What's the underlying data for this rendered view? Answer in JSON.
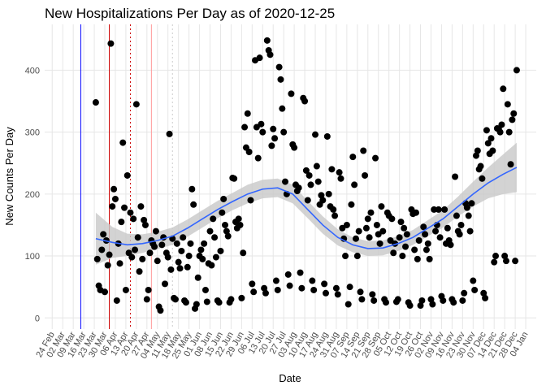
{
  "chart_data": {
    "type": "scatter",
    "title": "New Hospitalizations Per Day as of 2020-12-25",
    "x_label": "Date",
    "y_label": "New Counts Per Day",
    "color": "#000000",
    "grid": true,
    "xlim": [
      -5,
      322
    ],
    "ylim": [
      -18,
      474
    ],
    "yticks": [
      0,
      100,
      200,
      300,
      400
    ],
    "xticks": [
      {
        "value": 0,
        "label": "24 Feb"
      },
      {
        "value": 7,
        "label": "02 Mar"
      },
      {
        "value": 14,
        "label": "09 Mar"
      },
      {
        "value": 21,
        "label": "16 Mar"
      },
      {
        "value": 28,
        "label": "23 Mar"
      },
      {
        "value": 35,
        "label": "30 Mar"
      },
      {
        "value": 42,
        "label": "06 Apr"
      },
      {
        "value": 49,
        "label": "13 Apr"
      },
      {
        "value": 56,
        "label": "20 Apr"
      },
      {
        "value": 63,
        "label": "27 Apr"
      },
      {
        "value": 70,
        "label": "04 May"
      },
      {
        "value": 77,
        "label": "11 May"
      },
      {
        "value": 84,
        "label": "18 May"
      },
      {
        "value": 91,
        "label": "25 May"
      },
      {
        "value": 98,
        "label": "01 Jun"
      },
      {
        "value": 105,
        "label": "08 Jun"
      },
      {
        "value": 112,
        "label": "15 Jun"
      },
      {
        "value": 119,
        "label": "22 Jun"
      },
      {
        "value": 126,
        "label": "29 Jun"
      },
      {
        "value": 133,
        "label": "06 Jul"
      },
      {
        "value": 140,
        "label": "13 Jul"
      },
      {
        "value": 147,
        "label": "20 Jul"
      },
      {
        "value": 154,
        "label": "27 Jul"
      },
      {
        "value": 161,
        "label": "03 Aug"
      },
      {
        "value": 168,
        "label": "10 Aug"
      },
      {
        "value": 175,
        "label": "17 Aug"
      },
      {
        "value": 182,
        "label": "24 Aug"
      },
      {
        "value": 189,
        "label": "31 Aug"
      },
      {
        "value": 196,
        "label": "07 Sep"
      },
      {
        "value": 203,
        "label": "14 Sep"
      },
      {
        "value": 210,
        "label": "21 Sep"
      },
      {
        "value": 217,
        "label": "28 Sep"
      },
      {
        "value": 224,
        "label": "05 Oct"
      },
      {
        "value": 231,
        "label": "12 Oct"
      },
      {
        "value": 238,
        "label": "19 Oct"
      },
      {
        "value": 245,
        "label": "26 Oct"
      },
      {
        "value": 252,
        "label": "02 Nov"
      },
      {
        "value": 259,
        "label": "09 Nov"
      },
      {
        "value": 266,
        "label": "16 Nov"
      },
      {
        "value": 273,
        "label": "23 Nov"
      },
      {
        "value": 280,
        "label": "30 Nov"
      },
      {
        "value": 287,
        "label": "07 Dec"
      },
      {
        "value": 294,
        "label": "14 Dec"
      },
      {
        "value": 301,
        "label": "21 Dec"
      },
      {
        "value": 308,
        "label": "28 Dec"
      },
      {
        "value": 315,
        "label": "04 Jan"
      }
    ],
    "vlines": [
      {
        "x": 19,
        "color": "#0000ff",
        "dash": "solid"
      },
      {
        "x": 38,
        "color": "#cc0000",
        "dash": "solid"
      },
      {
        "x": 52,
        "color": "#cc0000",
        "dash": "dotted"
      },
      {
        "x": 66,
        "color": "#ff9999",
        "dash": "solid"
      },
      {
        "x": 80,
        "color": "#cccccc",
        "dash": "dotted"
      }
    ],
    "x": [
      29,
      30,
      31,
      32,
      33,
      34,
      35,
      36,
      37,
      38,
      39,
      40,
      41,
      42,
      43,
      44,
      45,
      46,
      47,
      48,
      49,
      50,
      51,
      52,
      53,
      54,
      55,
      56,
      57,
      58,
      59,
      60,
      61,
      62,
      63,
      64,
      65,
      66,
      67,
      68,
      69,
      70,
      71,
      72,
      73,
      74,
      75,
      76,
      77,
      78,
      79,
      80,
      81,
      82,
      83,
      84,
      85,
      86,
      87,
      88,
      89,
      90,
      91,
      92,
      93,
      94,
      95,
      96,
      97,
      98,
      99,
      100,
      101,
      102,
      103,
      104,
      105,
      106,
      107,
      108,
      109,
      110,
      111,
      112,
      113,
      114,
      115,
      116,
      117,
      118,
      119,
      120,
      121,
      122,
      123,
      124,
      125,
      126,
      127,
      128,
      129,
      130,
      131,
      132,
      133,
      134,
      135,
      136,
      137,
      138,
      139,
      140,
      141,
      142,
      143,
      144,
      145,
      146,
      147,
      148,
      149,
      150,
      151,
      152,
      153,
      154,
      155,
      156,
      157,
      158,
      159,
      160,
      161,
      162,
      163,
      164,
      165,
      166,
      167,
      168,
      169,
      170,
      171,
      172,
      173,
      174,
      175,
      176,
      177,
      178,
      179,
      180,
      181,
      182,
      183,
      184,
      185,
      186,
      187,
      188,
      189,
      190,
      191,
      192,
      193,
      194,
      195,
      196,
      197,
      198,
      199,
      200,
      201,
      202,
      203,
      204,
      205,
      206,
      207,
      208,
      209,
      210,
      211,
      212,
      213,
      214,
      215,
      216,
      217,
      218,
      219,
      220,
      221,
      222,
      223,
      224,
      225,
      226,
      227,
      228,
      229,
      230,
      231,
      232,
      233,
      234,
      235,
      236,
      237,
      238,
      239,
      240,
      241,
      242,
      243,
      244,
      245,
      246,
      247,
      248,
      249,
      250,
      251,
      252,
      253,
      254,
      255,
      256,
      257,
      258,
      259,
      260,
      261,
      262,
      263,
      264,
      265,
      266,
      267,
      268,
      269,
      270,
      271,
      272,
      273,
      274,
      275,
      276,
      277,
      278,
      279,
      280,
      281,
      282,
      283,
      284,
      285,
      286,
      287,
      288,
      289,
      290,
      291,
      292,
      293,
      294,
      295,
      296,
      297,
      298,
      299,
      300,
      301,
      302,
      303,
      304,
      305,
      306,
      307,
      308,
      309
    ],
    "values": [
      348,
      95,
      52,
      45,
      110,
      135,
      42,
      125,
      85,
      102,
      443,
      180,
      208,
      192,
      28,
      120,
      88,
      155,
      283,
      178,
      45,
      230,
      105,
      170,
      98,
      160,
      110,
      345,
      130,
      75,
      180,
      95,
      158,
      150,
      30,
      45,
      105,
      125,
      120,
      115,
      140,
      92,
      18,
      12,
      118,
      130,
      55,
      105,
      98,
      297,
      78,
      128,
      32,
      30,
      120,
      90,
      80,
      108,
      130,
      28,
      25,
      82,
      100,
      120,
      208,
      183,
      15,
      22,
      65,
      100,
      110,
      95,
      120,
      45,
      26,
      88,
      140,
      85,
      160,
      130,
      98,
      28,
      25,
      108,
      170,
      192,
      150,
      140,
      132,
      25,
      30,
      226,
      225,
      155,
      145,
      160,
      150,
      32,
      105,
      308,
      275,
      330,
      268,
      190,
      55,
      42,
      416,
      308,
      258,
      420,
      313,
      300,
      48,
      40,
      448,
      432,
      425,
      278,
      305,
      290,
      60,
      45,
      405,
      385,
      338,
      300,
      220,
      200,
      70,
      52,
      362,
      280,
      275,
      215,
      205,
      210,
      73,
      48,
      355,
      350,
      238,
      190,
      230,
      215,
      60,
      45,
      296,
      245,
      220,
      183,
      198,
      190,
      55,
      40,
      293,
      200,
      180,
      240,
      175,
      165,
      48,
      38,
      235,
      225,
      145,
      128,
      100,
      150,
      22,
      50,
      183,
      260,
      215,
      128,
      100,
      140,
      42,
      30,
      270,
      230,
      145,
      160,
      130,
      170,
      38,
      28,
      258,
      150,
      135,
      120,
      180,
      140,
      30,
      25,
      170,
      165,
      125,
      160,
      105,
      120,
      26,
      30,
      130,
      155,
      100,
      145,
      115,
      135,
      25,
      20,
      175,
      168,
      110,
      170,
      95,
      125,
      20,
      28,
      147,
      135,
      110,
      120,
      95,
      30,
      22,
      175,
      140,
      150,
      175,
      130,
      35,
      28,
      175,
      120,
      145,
      125,
      118,
      30,
      25,
      228,
      165,
      140,
      135,
      150,
      28,
      40,
      185,
      178,
      165,
      140,
      185,
      60,
      45,
      262,
      270,
      240,
      245,
      225,
      40,
      32,
      303,
      282,
      265,
      290,
      270,
      90,
      100,
      306,
      305,
      300,
      312,
      370,
      100,
      92,
      345,
      300,
      248,
      320,
      330,
      92,
      400
    ],
    "smooth": {
      "color": "#3366ff",
      "band_color": "#c8c8c8",
      "x": [
        29,
        40,
        50,
        60,
        70,
        80,
        90,
        100,
        110,
        120,
        130,
        140,
        150,
        160,
        170,
        180,
        190,
        200,
        210,
        220,
        230,
        240,
        250,
        260,
        270,
        280,
        290,
        300,
        309
      ],
      "values": [
        128,
        122,
        118,
        120,
        125,
        132,
        145,
        160,
        175,
        188,
        200,
        208,
        210,
        200,
        175,
        150,
        130,
        118,
        112,
        113,
        120,
        130,
        145,
        160,
        180,
        200,
        218,
        232,
        243
      ],
      "lower": [
        86,
        97,
        100,
        105,
        111,
        118,
        131,
        146,
        161,
        174,
        185,
        193,
        195,
        185,
        161,
        136,
        117,
        106,
        100,
        101,
        108,
        118,
        132,
        146,
        164,
        180,
        193,
        200,
        203
      ],
      "upper": [
        170,
        147,
        136,
        135,
        139,
        146,
        159,
        174,
        189,
        202,
        215,
        223,
        225,
        215,
        189,
        164,
        143,
        130,
        124,
        125,
        132,
        142,
        158,
        174,
        196,
        220,
        243,
        264,
        283
      ]
    }
  }
}
